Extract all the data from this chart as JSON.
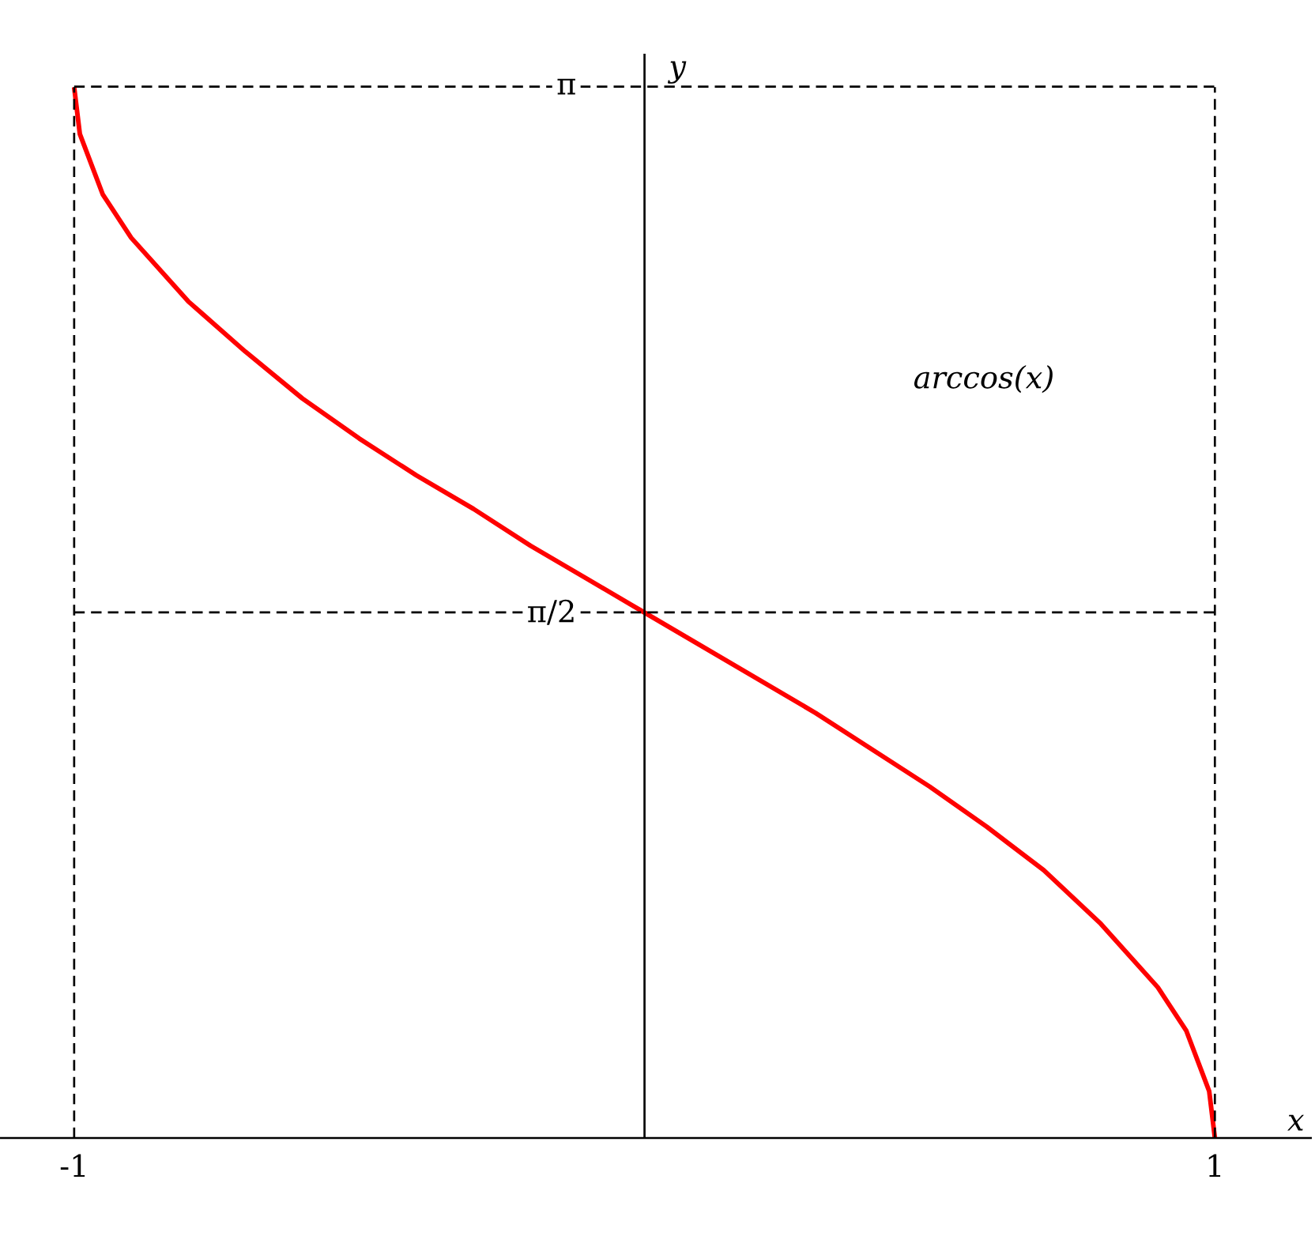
{
  "chart_data": {
    "type": "line",
    "xlabel": "x",
    "ylabel": "y",
    "x": [
      -1,
      -0.99,
      -0.95,
      -0.9,
      -0.8,
      -0.7,
      -0.6,
      -0.5,
      -0.4,
      -0.3,
      -0.2,
      -0.1,
      0,
      0.1,
      0.2,
      0.3,
      0.4,
      0.5,
      0.6,
      0.7,
      0.8,
      0.9,
      0.95,
      0.99,
      1
    ],
    "series": [
      {
        "name": "*arccos(x)*",
        "color": "#ff0000",
        "values": [
          3.14,
          3.0,
          2.82,
          2.69,
          2.5,
          2.35,
          2.21,
          2.09,
          1.98,
          1.88,
          1.77,
          1.67,
          1.57,
          1.47,
          1.37,
          1.27,
          1.16,
          1.05,
          0.93,
          0.8,
          0.64,
          0.45,
          0.32,
          0.14,
          0
        ]
      }
    ],
    "xlim": [
      -1.13,
      1.17
    ],
    "ylim": [
      0,
      3.24
    ],
    "xticks": [
      -1,
      1
    ],
    "yticks": [
      {
        "value": 1.5708,
        "label": "π/2"
      },
      {
        "value": 3.1416,
        "label": "π"
      }
    ],
    "ref_lines": [
      {
        "axis": "x",
        "value": -1,
        "line_style": "dashed",
        "color": "#000000"
      },
      {
        "axis": "x",
        "value": 1,
        "line_style": "dashed",
        "color": "#000000"
      },
      {
        "axis": "y",
        "value": 1.5708,
        "line_style": "dashed",
        "color": "#000000"
      },
      {
        "axis": "y",
        "value": 3.1416,
        "line_style": "dashed",
        "color": "#000000"
      }
    ],
    "grid": false,
    "marker": "none",
    "line_style": "solid"
  }
}
